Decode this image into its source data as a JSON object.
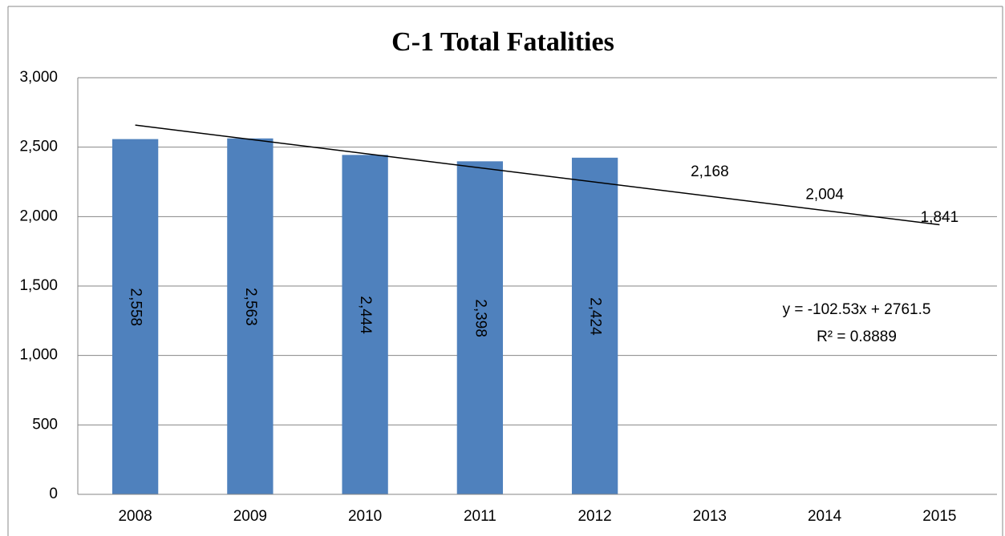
{
  "chart_data": {
    "type": "bar",
    "title": "C-1 Total Fatalities",
    "categories": [
      "2008",
      "2009",
      "2010",
      "2011",
      "2012",
      "2013",
      "2014",
      "2015"
    ],
    "series": [
      {
        "color": "#4f81bd",
        "values": [
          2558,
          2563,
          2444,
          2398,
          2424,
          null,
          null,
          null
        ],
        "value_labels": [
          "2,558",
          "2,563",
          "2,444",
          "2,398",
          "2,424",
          null,
          null,
          null
        ]
      },
      {
        "color": "none",
        "values": [
          null,
          null,
          null,
          null,
          null,
          2168,
          2004,
          1841
        ],
        "value_labels": [
          null,
          null,
          null,
          null,
          null,
          "2,168",
          "2,004",
          "1,841"
        ]
      }
    ],
    "trendline": {
      "slope": -102.53,
      "intercept": 2761.5,
      "equation": "y = -102.53x + 2761.5",
      "r_squared_label": "R² = 0.8889"
    },
    "ylim": [
      0,
      3000
    ],
    "yticks": [
      0,
      500,
      {
        "value": 1000,
        "label": "1,000"
      },
      {
        "value": 1500,
        "label": "1,500"
      },
      {
        "value": 2000,
        "label": "2,000"
      },
      {
        "value": 2500,
        "label": "2,500"
      },
      {
        "value": 3000,
        "label": "3,000"
      }
    ],
    "grid": true
  }
}
